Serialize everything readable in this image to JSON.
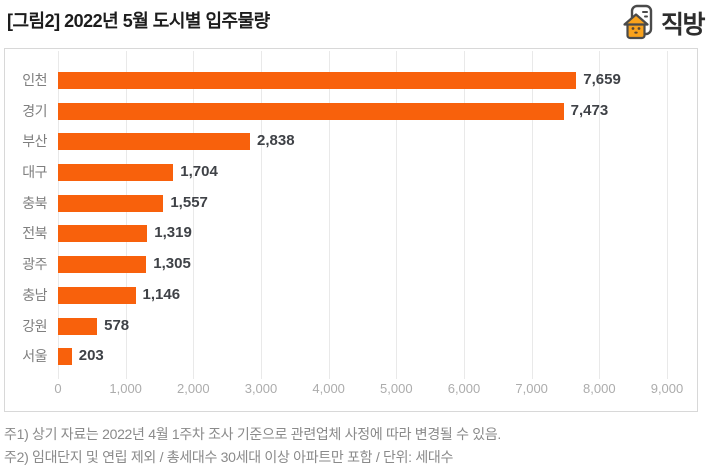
{
  "header": {
    "title": "[그림2] 2022년 5월 도시별 입주물량",
    "logo": {
      "text": "직방",
      "icon": "zigbang-house-icon",
      "house_color": "#F9A21C",
      "outline_color": "#4a4a4a"
    }
  },
  "chart_data": {
    "type": "bar",
    "orientation": "horizontal",
    "title": "2022년 5월 도시별 입주물량",
    "unit": "세대수",
    "categories": [
      "인천",
      "경기",
      "부산",
      "대구",
      "충북",
      "전북",
      "광주",
      "충남",
      "강원",
      "서울"
    ],
    "values": [
      7659,
      7473,
      2838,
      1704,
      1557,
      1319,
      1305,
      1146,
      578,
      203
    ],
    "value_labels": [
      "7,659",
      "7,473",
      "2,838",
      "1,704",
      "1,557",
      "1,319",
      "1,305",
      "1,146",
      "578",
      "203"
    ],
    "xlim": [
      0,
      9000
    ],
    "x_ticks": [
      0,
      1000,
      2000,
      3000,
      4000,
      5000,
      6000,
      7000,
      8000,
      9000
    ],
    "x_tick_labels": [
      "0",
      "1,000",
      "2,000",
      "3,000",
      "4,000",
      "5,000",
      "6,000",
      "7,000",
      "8,000",
      "9,000"
    ],
    "grid": true,
    "legend": "none",
    "bar_color": "#F8610C"
  },
  "footnotes": [
    "주1) 상기 자료는 2022년 4월 1주차 조사 기준으로 관련업체 사정에 따라 변경될 수 있음.",
    "주2) 임대단지 및 연립 제외 / 총세대수 30세대 이상 아파트만 포함 / 단위: 세대수"
  ],
  "colors": {
    "bar": "#F8610C",
    "value_label": "#3f4247",
    "category_label": "#7f7f7f",
    "tick_label": "#acacac",
    "gridline": "#e9e9e9",
    "panel_border": "#d8d8d8",
    "note_text": "#8a8a8a",
    "title_text": "#1c1c1c"
  }
}
